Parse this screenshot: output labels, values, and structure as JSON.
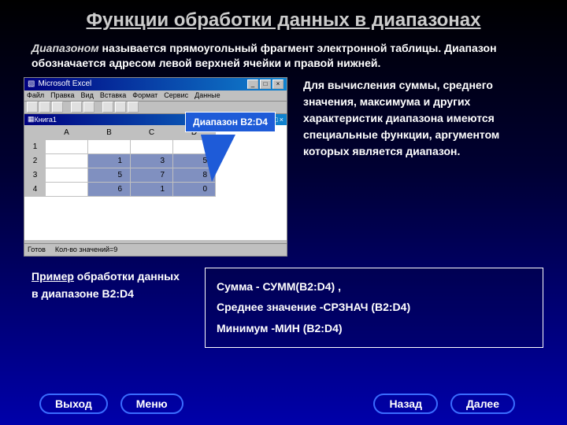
{
  "title": "Функции обработки данных в диапазонах",
  "intro_em": "Диапазоном",
  "intro_rest": " называется прямоугольный фрагмент электронной таблицы. Диапазон обозначается адресом левой верхней ячейки и правой нижней.",
  "excel": {
    "app": "Microsoft Excel",
    "book": "Книга1",
    "menu": [
      "Файл",
      "Правка",
      "Вид",
      "Вставка",
      "Формат",
      "Сервис",
      "Данные"
    ],
    "cols": [
      "A",
      "B",
      "C",
      "D"
    ],
    "rowhead": [
      "1",
      "2",
      "3",
      "4"
    ],
    "cells": [
      [
        "",
        "1",
        "3",
        "5"
      ],
      [
        "",
        "5",
        "7",
        "8"
      ],
      [
        "",
        "6",
        "1",
        "0"
      ]
    ],
    "status_left": "Готов",
    "status_right": "Кол-во значений=9"
  },
  "callout": "Диапазон B2:D4",
  "sidetext": "Для вычисления суммы, среднего значения, максимума и других характеристик диапазона имеются специальные функции, аргументом которых является диапазон.",
  "example_u": "Пример",
  "example_rest": " обработки данных в диапазоне B2:D4",
  "formulas": {
    "l1": "Сумма  -   СУММ(B2:D4) ,",
    "l2": "Среднее значение -СРЗНАЧ (B2:D4)",
    "l3": "Минимум -МИН (B2:D4)"
  },
  "nav": {
    "exit": "Выход",
    "menu": "Меню",
    "back": "Назад",
    "next": "Далее"
  },
  "colors": {
    "accent": "#1e5bd8",
    "btn_border": "#3a6cff"
  }
}
